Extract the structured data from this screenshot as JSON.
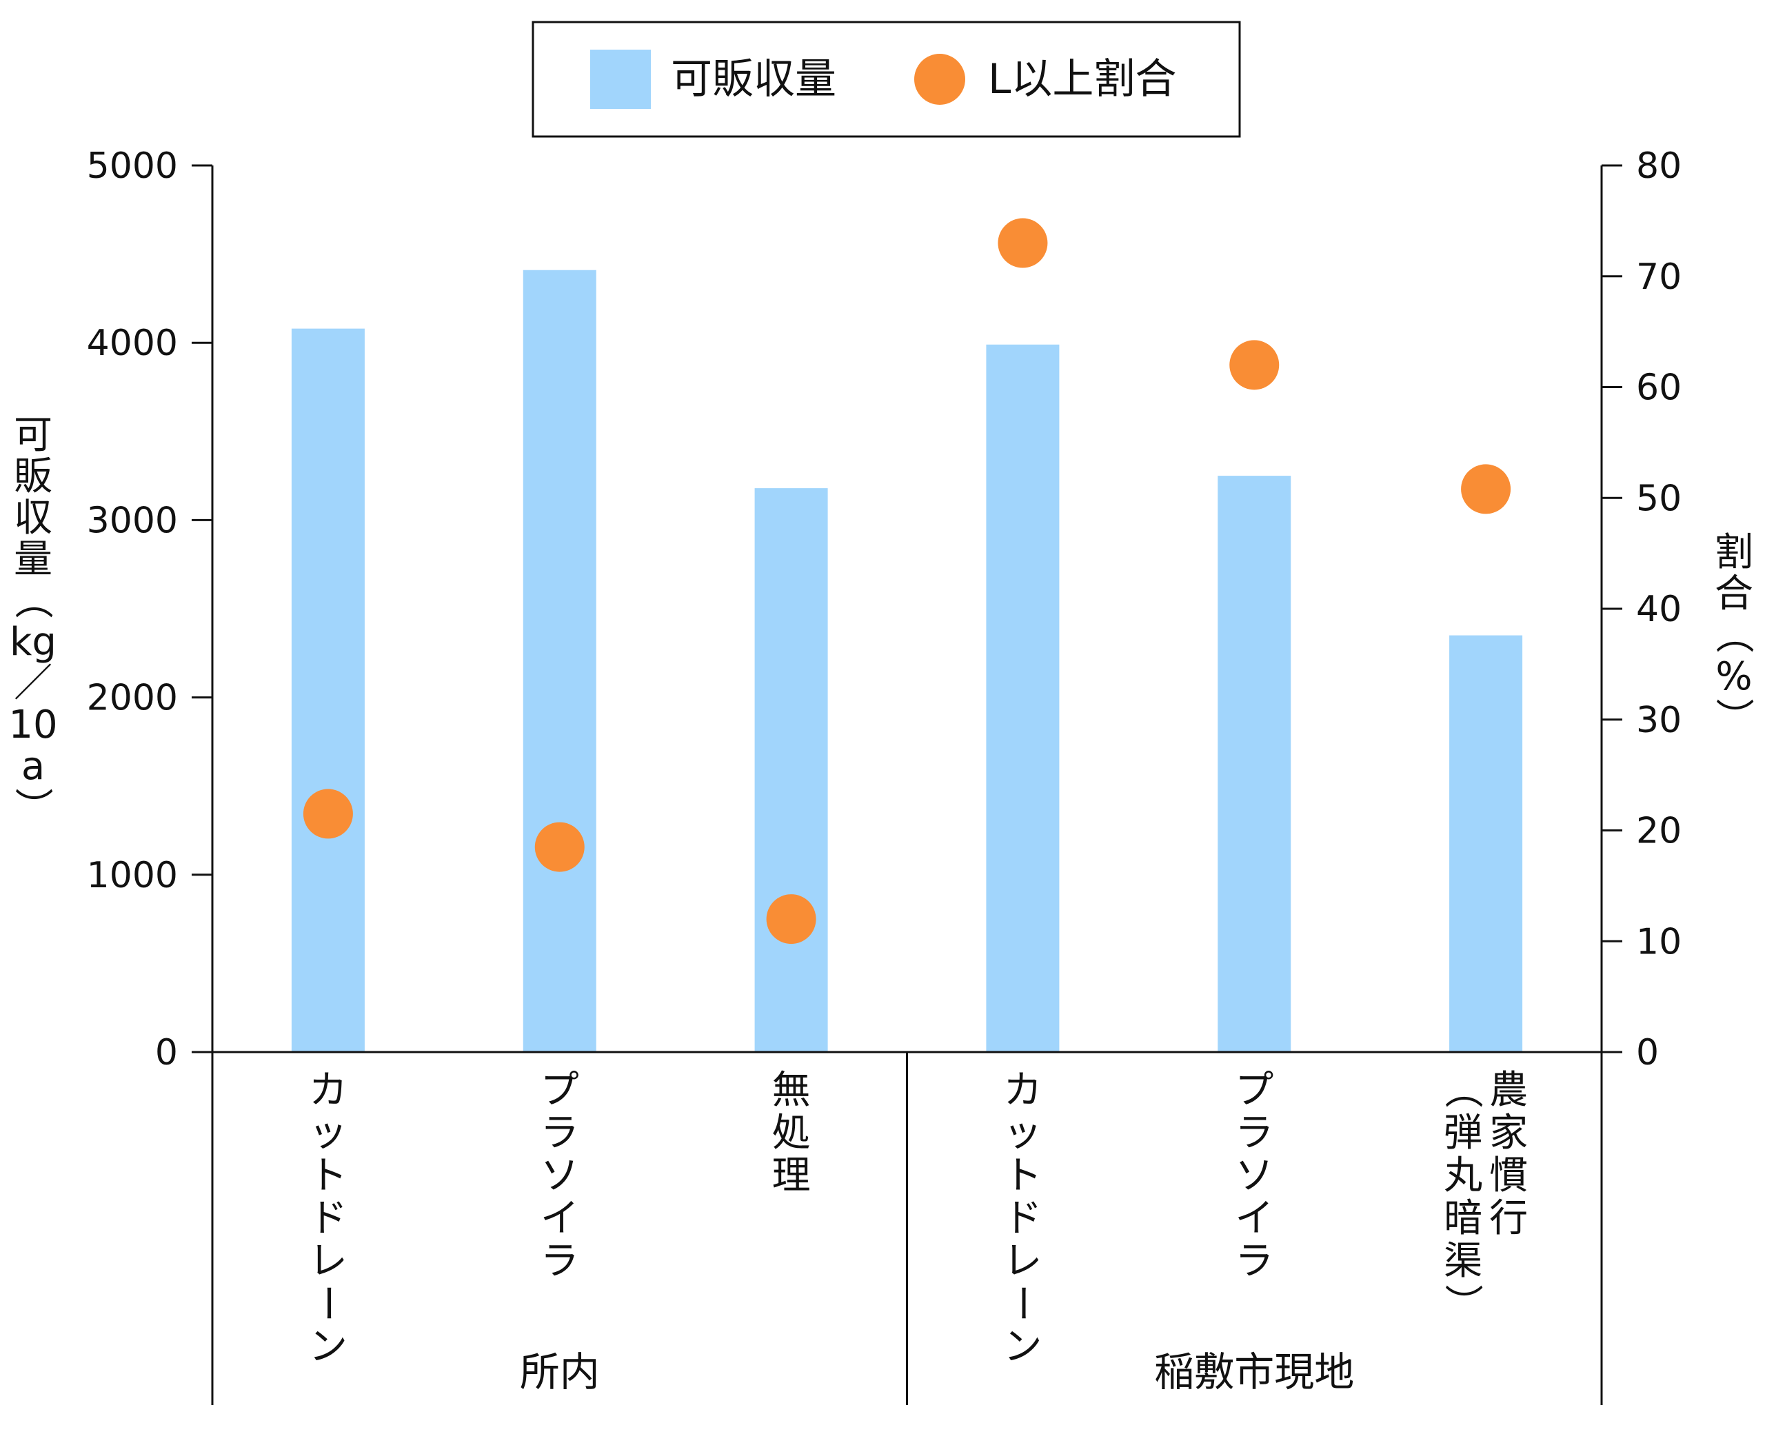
{
  "chart_data": {
    "type": "bar+scatter",
    "categories": [
      "カットドレーン",
      "プラソイラ",
      "無処理",
      "カットドレーン",
      "プラソイラ",
      "農家慣行（弾丸暗渠）"
    ],
    "category_lines": [
      [
        "カットドレーン"
      ],
      [
        "プラソイラ"
      ],
      [
        "無処理"
      ],
      [
        "カットドレーン"
      ],
      [
        "プラソイラ"
      ],
      [
        "農家慣行",
        "（弾丸暗渠）"
      ]
    ],
    "groups": [
      {
        "label": "所内",
        "count": 3
      },
      {
        "label": "稲敷市現地",
        "count": 3
      }
    ],
    "series": [
      {
        "name": "可販収量",
        "kind": "bar",
        "axis": "left",
        "color": "#a1d5fc",
        "values": [
          4080,
          4410,
          3180,
          3990,
          3250,
          2350
        ]
      },
      {
        "name": "L以上割合",
        "kind": "scatter",
        "axis": "right",
        "color": "#f98d35",
        "values": [
          21.5,
          18.5,
          12.0,
          73.0,
          62.0,
          50.8
        ]
      }
    ],
    "y_left": {
      "label": "可販収量（kg／10a）",
      "label_chars": [
        "可",
        "販",
        "収",
        "量",
        "（",
        "kg",
        "／",
        "10",
        "a",
        "）"
      ],
      "min": 0,
      "max": 5000,
      "ticks": [
        0,
        1000,
        2000,
        3000,
        4000,
        5000
      ]
    },
    "y_right": {
      "label": "割合（%）",
      "label_chars": [
        "割",
        "合",
        "（",
        "%",
        "）"
      ],
      "min": 0,
      "max": 80,
      "ticks": [
        0,
        10,
        20,
        30,
        40,
        50,
        60,
        70,
        80
      ]
    },
    "legend": {
      "position": "top-center"
    }
  }
}
